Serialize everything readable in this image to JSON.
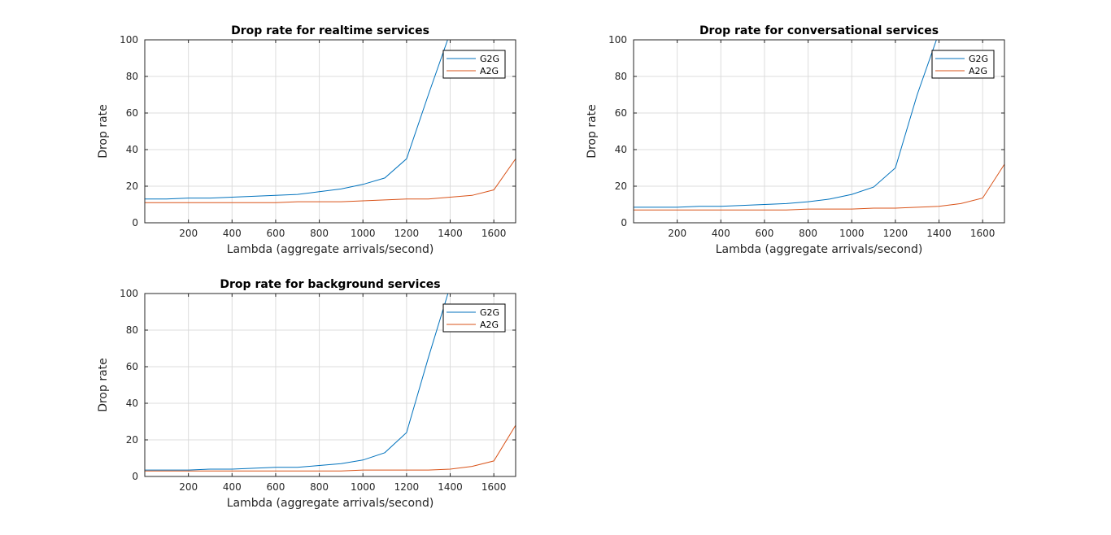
{
  "colors": {
    "g2g": "#0072bd",
    "a2g": "#d95319",
    "grid": "#dcdcdc",
    "axis": "#262626"
  },
  "chart_data": [
    {
      "type": "line",
      "title": "Drop rate for realtime services",
      "xlabel": "Lambda (aggregate arrivals/second)",
      "ylabel": "Drop rate",
      "xlim": [
        0,
        1700
      ],
      "ylim": [
        0,
        100
      ],
      "xticks": [
        "200",
        "400",
        "600",
        "800",
        "1000",
        "1200",
        "1400",
        "1600"
      ],
      "yticks": [
        "0",
        "20",
        "40",
        "60",
        "80",
        "100"
      ],
      "grid": true,
      "legend_position": "top-right",
      "x": [
        0,
        100,
        200,
        300,
        400,
        500,
        600,
        700,
        800,
        900,
        1000,
        1100,
        1200,
        1300,
        1400,
        1500,
        1600,
        1700
      ],
      "series": [
        {
          "name": "G2G",
          "values": [
            13,
            13,
            13.5,
            13.5,
            14,
            14.5,
            15,
            15.5,
            17,
            18.5,
            21,
            24.5,
            35,
            70,
            104,
            104,
            104,
            104
          ]
        },
        {
          "name": "A2G",
          "values": [
            11,
            11,
            11,
            11,
            11,
            11,
            11,
            11.5,
            11.5,
            11.5,
            12,
            12.5,
            13,
            13,
            14,
            15,
            18,
            35
          ]
        }
      ]
    },
    {
      "type": "line",
      "title": "Drop rate for conversational services",
      "xlabel": "Lambda (aggregate arrivals/second)",
      "ylabel": "Drop rate",
      "xlim": [
        0,
        1700
      ],
      "ylim": [
        0,
        100
      ],
      "xticks": [
        "200",
        "400",
        "600",
        "800",
        "1000",
        "1200",
        "1400",
        "1600"
      ],
      "yticks": [
        "0",
        "20",
        "40",
        "60",
        "80",
        "100"
      ],
      "grid": true,
      "legend_position": "top-right",
      "x": [
        0,
        100,
        200,
        300,
        400,
        500,
        600,
        700,
        800,
        900,
        1000,
        1100,
        1200,
        1300,
        1400,
        1500,
        1600,
        1700
      ],
      "series": [
        {
          "name": "G2G",
          "values": [
            8.5,
            8.5,
            8.5,
            9,
            9,
            9.5,
            10,
            10.5,
            11.5,
            13,
            15.5,
            19.5,
            30,
            70,
            104,
            104,
            104,
            104
          ]
        },
        {
          "name": "A2G",
          "values": [
            7,
            7,
            7,
            7,
            7,
            7,
            7,
            7,
            7.5,
            7.5,
            7.5,
            8,
            8,
            8.5,
            9,
            10.5,
            13.5,
            32
          ]
        }
      ]
    },
    {
      "type": "line",
      "title": "Drop rate for background services",
      "xlabel": "Lambda (aggregate arrivals/second)",
      "ylabel": "Drop rate",
      "xlim": [
        0,
        1700
      ],
      "ylim": [
        0,
        100
      ],
      "xticks": [
        "200",
        "400",
        "600",
        "800",
        "1000",
        "1200",
        "1400",
        "1600"
      ],
      "yticks": [
        "0",
        "20",
        "40",
        "60",
        "80",
        "100"
      ],
      "grid": true,
      "legend_position": "top-right",
      "x": [
        0,
        100,
        200,
        300,
        400,
        500,
        600,
        700,
        800,
        900,
        1000,
        1100,
        1200,
        1300,
        1400,
        1500,
        1600,
        1700
      ],
      "series": [
        {
          "name": "G2G",
          "values": [
            3.5,
            3.5,
            3.5,
            4,
            4,
            4.5,
            5,
            5,
            6,
            7,
            9,
            13,
            24,
            65,
            104,
            104,
            104,
            104
          ]
        },
        {
          "name": "A2G",
          "values": [
            3,
            3,
            3,
            3,
            3,
            3,
            3,
            3,
            3,
            3,
            3.5,
            3.5,
            3.5,
            3.5,
            4,
            5.5,
            8.5,
            28
          ]
        }
      ]
    }
  ]
}
